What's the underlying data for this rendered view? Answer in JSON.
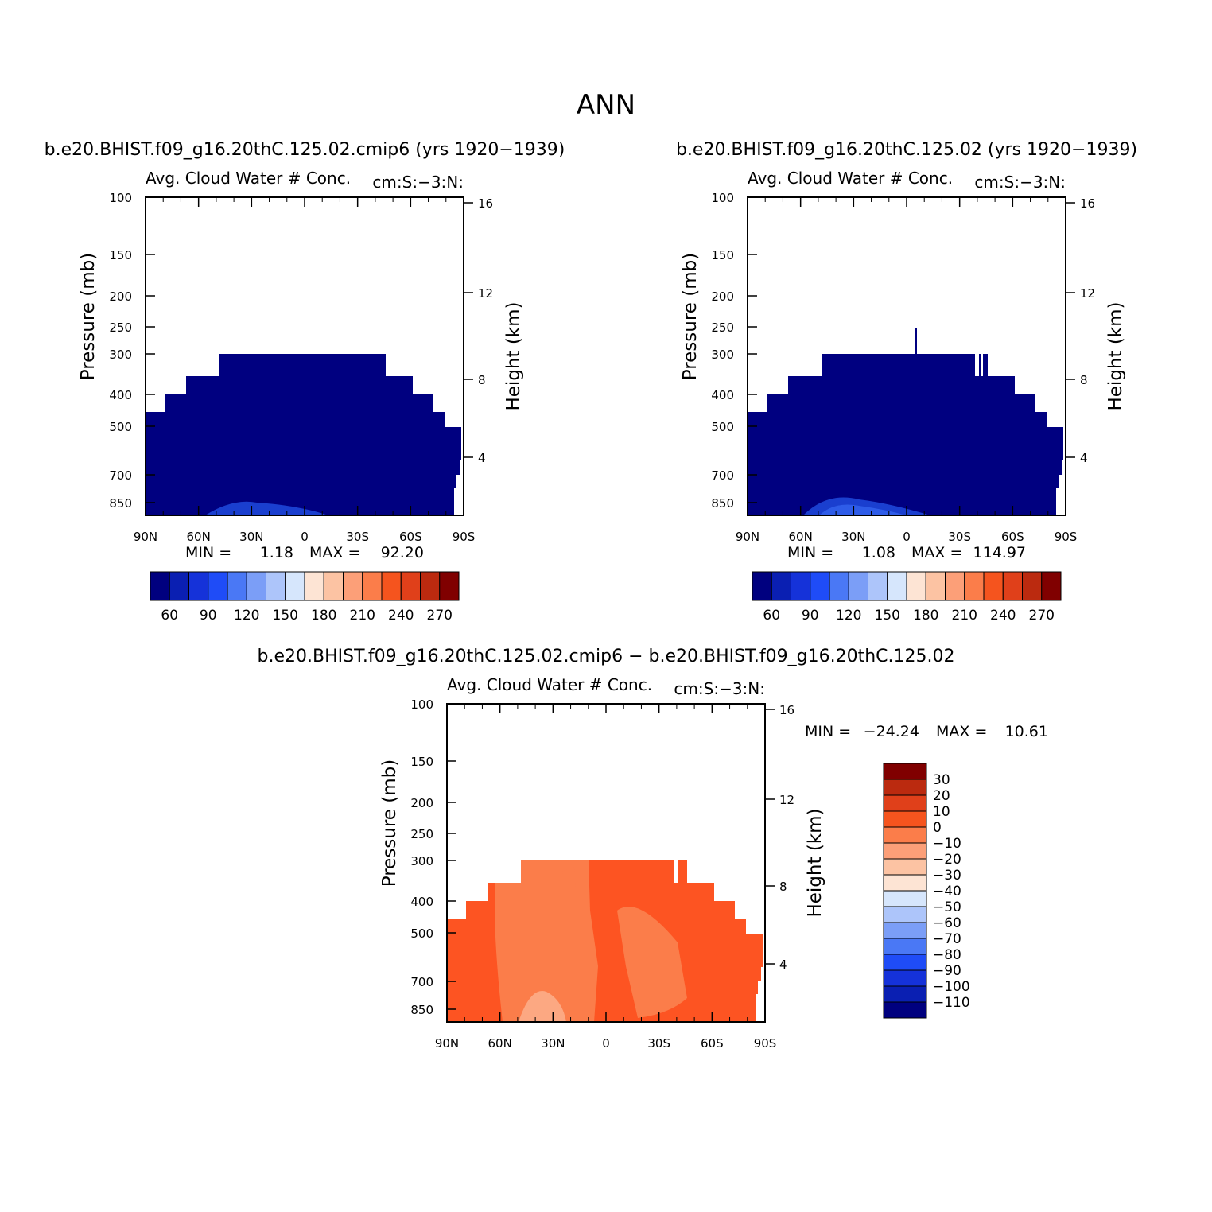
{
  "figure": {
    "title": "ANN"
  },
  "colors": {
    "field_fill": "#000080",
    "field_shade": "#1a3fcf",
    "diff_main": "#fb7d4a",
    "diff_dark": "#fd5422",
    "diff_light": "#fca882"
  },
  "chart_data": [
    {
      "type": "heatmap",
      "case": "b.e20.BHIST.f09_g16.20thC.125.02.cmip6 (yrs 1920−1939)",
      "variable": "Avg. Cloud Water # Conc.",
      "units": "cm:S:−3:N:",
      "ylabel": "Pressure (mb)",
      "ylabel_right": "Height (km)",
      "x_ticks": [
        "90N",
        "60N",
        "30N",
        "0",
        "30S",
        "60S",
        "90S"
      ],
      "y_ticks": [
        "100",
        "150",
        "200",
        "250",
        "300",
        "400",
        "500",
        "700",
        "850"
      ],
      "y_right_ticks": [
        "16",
        "12",
        "8",
        "4"
      ],
      "min_label": "MIN =",
      "min_value": "1.18",
      "max_label": "MAX =",
      "max_value": "92.20",
      "colorbar_labels": [
        "60",
        "90",
        "120",
        "150",
        "180",
        "210",
        "240",
        "270"
      ]
    },
    {
      "type": "heatmap",
      "case": "b.e20.BHIST.f09_g16.20thC.125.02 (yrs 1920−1939)",
      "variable": "Avg. Cloud Water # Conc.",
      "units": "cm:S:−3:N:",
      "ylabel": "Pressure (mb)",
      "ylabel_right": "Height (km)",
      "x_ticks": [
        "90N",
        "60N",
        "30N",
        "0",
        "30S",
        "60S",
        "90S"
      ],
      "y_ticks": [
        "100",
        "150",
        "200",
        "250",
        "300",
        "400",
        "500",
        "700",
        "850"
      ],
      "y_right_ticks": [
        "16",
        "12",
        "8",
        "4"
      ],
      "min_label": "MIN =",
      "min_value": "1.08",
      "max_label": "MAX =",
      "max_value": "114.97",
      "colorbar_labels": [
        "60",
        "90",
        "120",
        "150",
        "180",
        "210",
        "240",
        "270"
      ]
    },
    {
      "type": "heatmap",
      "case": "b.e20.BHIST.f09_g16.20thC.125.02.cmip6 − b.e20.BHIST.f09_g16.20thC.125.02",
      "variable": "Avg. Cloud Water # Conc.",
      "units": "cm:S:−3:N:",
      "ylabel": "Pressure (mb)",
      "ylabel_right": "Height (km)",
      "x_ticks": [
        "90N",
        "60N",
        "30N",
        "0",
        "30S",
        "60S",
        "90S"
      ],
      "y_ticks": [
        "100",
        "150",
        "200",
        "250",
        "300",
        "400",
        "500",
        "700",
        "850"
      ],
      "y_right_ticks": [
        "16",
        "12",
        "8",
        "4"
      ],
      "min_label": "MIN =",
      "min_value": "−24.24",
      "max_label": "MAX =",
      "max_value": "10.61",
      "colorbar_labels": [
        "30",
        "20",
        "10",
        "0",
        "−10",
        "−20",
        "−30",
        "−40",
        "−50",
        "−60",
        "−70",
        "−80",
        "−90",
        "−100",
        "−110"
      ]
    }
  ],
  "colorbar_main": [
    "#00007f",
    "#0a1fb2",
    "#1532d9",
    "#1f4cf7",
    "#4a78f5",
    "#7b9ef7",
    "#adc5fa",
    "#d6e6fc",
    "#fde4d4",
    "#fcc3a3",
    "#fc9f78",
    "#fb7d4a",
    "#f5541e",
    "#e0401a",
    "#bb2a0f",
    "#800000"
  ],
  "colorbar_diff": [
    "#800000",
    "#bb2a0f",
    "#e0401a",
    "#f5541e",
    "#fb7d4a",
    "#fc9f78",
    "#fcc3a3",
    "#fde4d4",
    "#d6e6fc",
    "#adc5fa",
    "#7b9ef7",
    "#4a78f5",
    "#1f4cf7",
    "#1532d9",
    "#0a1fb2",
    "#00007f"
  ]
}
